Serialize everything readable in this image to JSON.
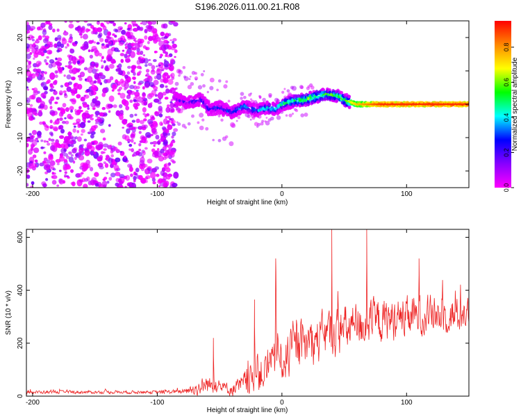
{
  "title": "S196.2026.011.00.21.R08",
  "chart_data": [
    {
      "type": "heatmap",
      "xlabel": "Height of straight line (km)",
      "ylabel": "Frequency (Hz)",
      "xlim": [
        -205,
        150
      ],
      "ylim": [
        -25,
        25
      ],
      "xticks": [
        -200,
        -100,
        0,
        100
      ],
      "yticks": [
        -20,
        -10,
        0,
        10,
        20
      ],
      "colorbar": {
        "label": "Normalized spectral amplitude",
        "range": [
          0,
          0.95
        ],
        "ticks": [
          0.0,
          0.2,
          0.4,
          0.6,
          0.8
        ],
        "colors": [
          "#ff00ff",
          "#8800ff",
          "#0000ff",
          "#00ffff",
          "#00ff00",
          "#ffff00",
          "#ff8800",
          "#ff0000"
        ]
      },
      "noise_region": {
        "x_range": [
          -205,
          -85
        ],
        "freq_range": [
          -25,
          25
        ]
      },
      "ridge": {
        "x": [
          -85,
          -75,
          -65,
          -58,
          -50,
          -40,
          -30,
          -20,
          -12,
          -5,
          0,
          10,
          20,
          30,
          36,
          45,
          52,
          60,
          80,
          100,
          150
        ],
        "freq": [
          1.5,
          0.5,
          1.5,
          -1.5,
          -1.0,
          -2.5,
          -0.5,
          -2.0,
          -1.0,
          -1.5,
          0.0,
          1.0,
          1.5,
          2.5,
          3.0,
          2.5,
          1.0,
          0.0,
          0.0,
          0.0,
          0.0
        ],
        "amplitude": [
          0.2,
          0.25,
          0.3,
          0.3,
          0.25,
          0.35,
          0.4,
          0.35,
          0.45,
          0.45,
          0.5,
          0.55,
          0.6,
          0.6,
          0.55,
          0.55,
          0.6,
          0.75,
          0.9,
          0.9,
          0.9
        ]
      }
    },
    {
      "type": "line",
      "xlabel": "Height of straight line (km)",
      "ylabel": "SNR (10 * v/v)",
      "xlim": [
        -205,
        150
      ],
      "ylim": [
        0,
        630
      ],
      "xticks": [
        -200,
        -100,
        0,
        100
      ],
      "yticks": [
        0,
        200,
        400,
        600
      ],
      "series_color": "#ee2222",
      "envelope": {
        "x": [
          -205,
          -100,
          -80,
          -70,
          -60,
          -50,
          -40,
          -30,
          -20,
          -10,
          0,
          10,
          20,
          30,
          40,
          50,
          60,
          70,
          80,
          90,
          100,
          120,
          150
        ],
        "base": [
          15,
          15,
          18,
          25,
          45,
          35,
          25,
          45,
          75,
          105,
          140,
          170,
          195,
          215,
          235,
          250,
          265,
          275,
          285,
          290,
          295,
          305,
          310
        ],
        "amplitude": [
          10,
          10,
          15,
          40,
          60,
          40,
          40,
          80,
          110,
          130,
          140,
          140,
          150,
          150,
          160,
          150,
          150,
          140,
          140,
          130,
          130,
          120,
          110
        ]
      },
      "peaks": [
        {
          "x": -55,
          "y": 220
        },
        {
          "x": -22,
          "y": 365
        },
        {
          "x": -5,
          "y": 520
        },
        {
          "x": 40,
          "y": 630
        },
        {
          "x": 68,
          "y": 630
        },
        {
          "x": 110,
          "y": 520
        }
      ]
    }
  ]
}
